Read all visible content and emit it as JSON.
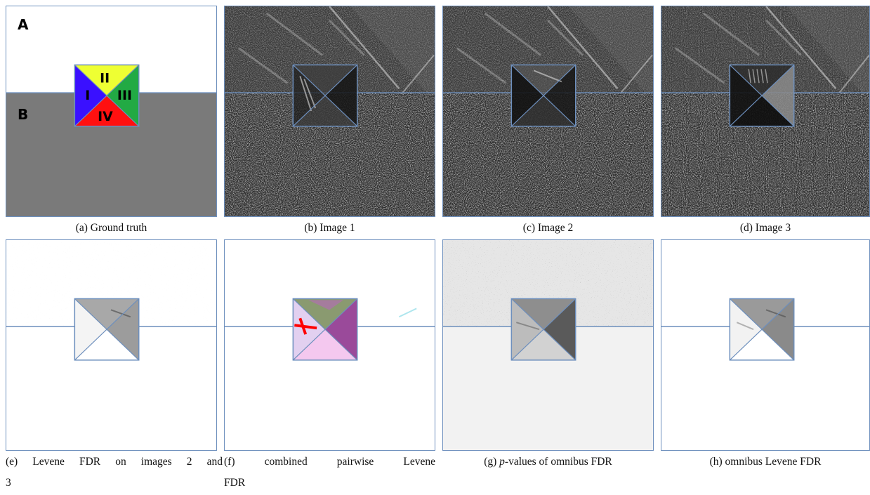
{
  "figure": {
    "ground_truth": {
      "region_a_label": "A",
      "region_b_label": "B",
      "quadrant_labels": [
        "I",
        "II",
        "III",
        "IV"
      ],
      "colors": {
        "region_a": "#ffffff",
        "region_b": "#7a7a7a",
        "quadrant_I": "#3a10ff",
        "quadrant_II": "#eeff33",
        "quadrant_III": "#22aa44",
        "quadrant_IV": "#ff1010",
        "outline": "#6d8fbd"
      }
    },
    "captions": {
      "a": "(a) Ground truth",
      "b": "(b) Image 1",
      "c": "(c) Image 2",
      "d": "(d) Image 3",
      "e_line1": "(e) Levene FDR on images 2 and",
      "e_line2": "3",
      "f_words": [
        "(f)",
        "combined",
        "pairwise",
        "Levene"
      ],
      "f_line2": "FDR",
      "g_italic": "p",
      "g_rest": "-values of omnibus FDR",
      "h": "(h) omnibus Levene FDR"
    }
  }
}
